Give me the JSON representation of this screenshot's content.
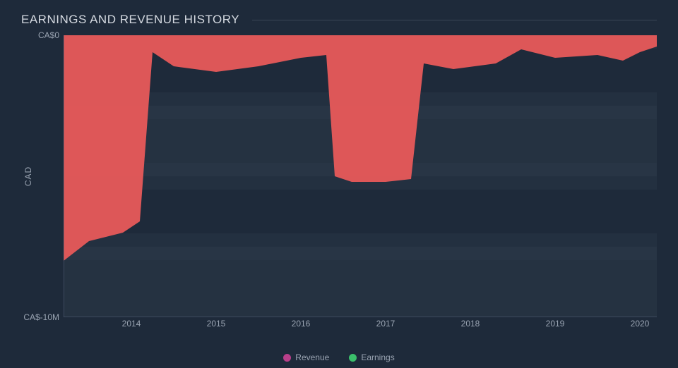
{
  "chart": {
    "type": "area",
    "title": "EARNINGS AND REVENUE HISTORY",
    "background_color": "#1e2a3a",
    "text_color": "#aeb7c4",
    "title_color": "#d4d9e0",
    "title_fontsize": 17,
    "tick_fontsize": 12,
    "grid_color": "#2f3b4c",
    "axis_line_color": "#55617a",
    "y_axis": {
      "label": "CAD",
      "min": -10,
      "max": 0,
      "ticks": [
        {
          "value": 0,
          "label": "CA$0"
        },
        {
          "value": -10,
          "label": "CA$-10M"
        }
      ],
      "grid_values": [
        0,
        -2.5,
        -5,
        -7.5,
        -10
      ]
    },
    "x_axis": {
      "min": 2013.2,
      "max": 2020.2,
      "ticks": [
        {
          "value": 2014,
          "label": "2014"
        },
        {
          "value": 2015,
          "label": "2015"
        },
        {
          "value": 2016,
          "label": "2016"
        },
        {
          "value": 2017,
          "label": "2017"
        },
        {
          "value": 2018,
          "label": "2018"
        },
        {
          "value": 2019,
          "label": "2019"
        },
        {
          "value": 2020,
          "label": "2020"
        }
      ]
    },
    "legend": [
      {
        "label": "Revenue",
        "color": "#b93f8a"
      },
      {
        "label": "Earnings",
        "color": "#3bbf6b"
      }
    ],
    "series": [
      {
        "name": "Earnings",
        "fill_color": "#e85a5a",
        "fill_opacity": 0.95,
        "line_color": "#e85a5a",
        "line_width": 0,
        "points": [
          {
            "x": 2013.2,
            "y": -8.0
          },
          {
            "x": 2013.5,
            "y": -7.3
          },
          {
            "x": 2013.9,
            "y": -7.0
          },
          {
            "x": 2014.1,
            "y": -6.6
          },
          {
            "x": 2014.25,
            "y": -0.6
          },
          {
            "x": 2014.5,
            "y": -1.1
          },
          {
            "x": 2015.0,
            "y": -1.3
          },
          {
            "x": 2015.5,
            "y": -1.1
          },
          {
            "x": 2016.0,
            "y": -0.8
          },
          {
            "x": 2016.3,
            "y": -0.7
          },
          {
            "x": 2016.4,
            "y": -5.0
          },
          {
            "x": 2016.6,
            "y": -5.2
          },
          {
            "x": 2017.0,
            "y": -5.2
          },
          {
            "x": 2017.3,
            "y": -5.1
          },
          {
            "x": 2017.45,
            "y": -1.0
          },
          {
            "x": 2017.8,
            "y": -1.2
          },
          {
            "x": 2018.3,
            "y": -1.0
          },
          {
            "x": 2018.6,
            "y": -0.5
          },
          {
            "x": 2019.0,
            "y": -0.8
          },
          {
            "x": 2019.5,
            "y": -0.7
          },
          {
            "x": 2019.8,
            "y": -0.9
          },
          {
            "x": 2020.0,
            "y": -0.6
          },
          {
            "x": 2020.2,
            "y": -0.4
          }
        ]
      }
    ]
  }
}
